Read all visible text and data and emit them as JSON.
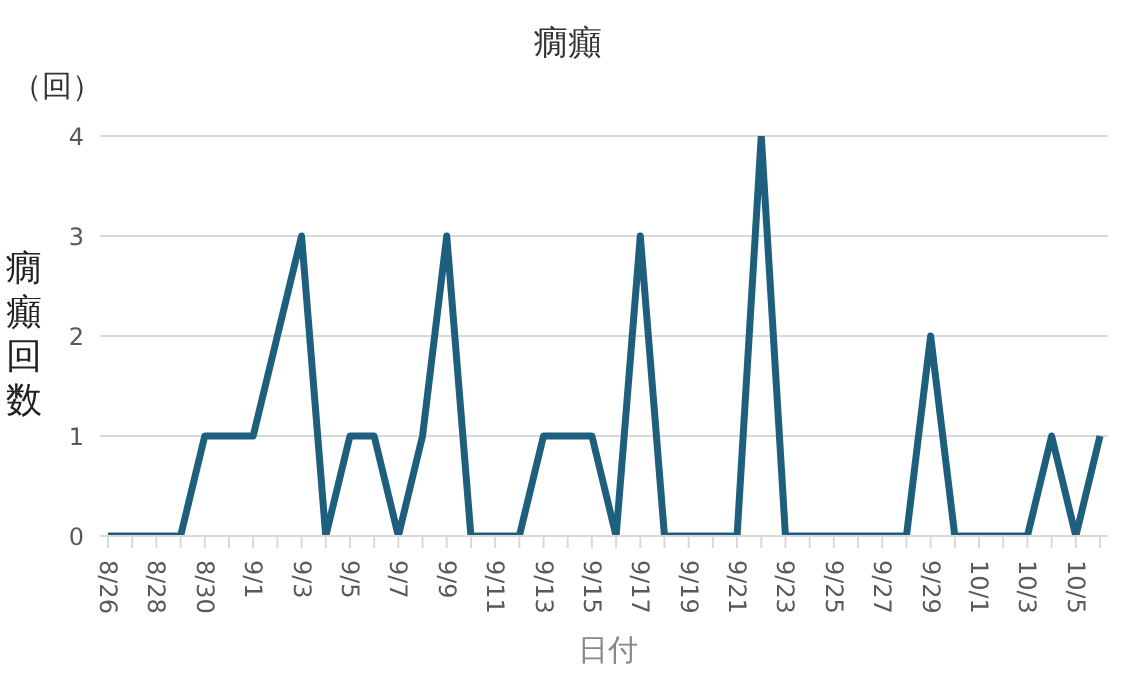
{
  "chart_data": {
    "type": "line",
    "title": "癇癲",
    "xlabel": "日付",
    "ylabel": "癇癲回数",
    "annotations": [
      "（回）"
    ],
    "categories": [
      "8/26",
      null,
      "8/28",
      null,
      "8/30",
      null,
      "9/1",
      null,
      "9/3",
      null,
      "9/5",
      null,
      "9/7",
      null,
      "9/9",
      null,
      "9/11",
      null,
      "9/13",
      null,
      "9/15",
      null,
      "9/17",
      null,
      "9/19",
      null,
      "9/21",
      null,
      "9/23",
      null,
      "9/25",
      null,
      "9/27",
      null,
      "9/29",
      null,
      "10/1",
      null,
      "10/3",
      null,
      "10/5",
      null
    ],
    "series": [
      {
        "color": "#1f5f7e",
        "values": [
          0,
          0,
          0,
          0,
          1,
          1,
          1,
          2,
          3,
          0,
          1,
          1,
          0,
          1,
          3,
          0,
          0,
          0,
          1,
          1,
          1,
          0,
          3,
          0,
          0,
          0,
          0,
          4,
          0,
          0,
          0,
          0,
          0,
          0,
          2,
          0,
          0,
          0,
          0,
          1,
          0,
          1
        ]
      }
    ],
    "ylim": [
      0,
      4
    ],
    "yticks": [
      0,
      1,
      2,
      3,
      4
    ],
    "grid": "y",
    "legend": false,
    "marker": "none",
    "line_style": "solid"
  }
}
